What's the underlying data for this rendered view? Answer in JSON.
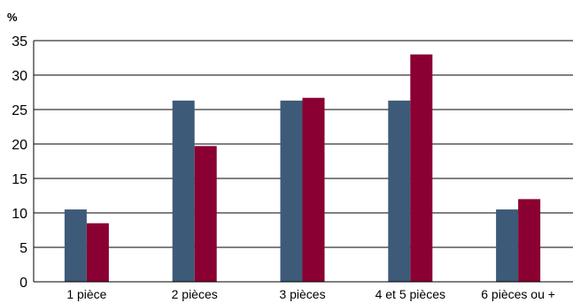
{
  "chart_data": {
    "type": "bar",
    "ylabel": "%",
    "xlabel": "",
    "title": "",
    "ylim": [
      0,
      35
    ],
    "yticks": [
      0,
      5,
      10,
      15,
      20,
      25,
      30,
      35
    ],
    "grid": "horizontal",
    "legend": "none",
    "categories": [
      "1 pièce",
      "2 pièces",
      "3 pièces",
      "4 et 5 pièces",
      "6 pièces ou +"
    ],
    "series": [
      {
        "color": "#3d5a78",
        "values": [
          10.5,
          26.3,
          26.3,
          26.3,
          10.5
        ]
      },
      {
        "color": "#8b0032",
        "values": [
          8.5,
          19.7,
          26.7,
          33.0,
          12.0
        ]
      }
    ]
  }
}
